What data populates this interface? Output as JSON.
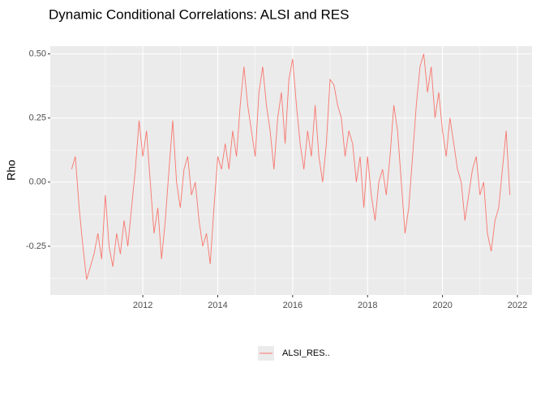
{
  "chart_data": {
    "type": "line",
    "title": "Dynamic Conditional Correlations: ALSI and RES",
    "y_label": "Rho",
    "x": [
      2010.1,
      2010.2,
      2010.3,
      2010.4,
      2010.5,
      2010.6,
      2010.7,
      2010.8,
      2010.9,
      2011.0,
      2011.1,
      2011.2,
      2011.3,
      2011.4,
      2011.5,
      2011.6,
      2011.7,
      2011.8,
      2011.9,
      2012.0,
      2012.1,
      2012.2,
      2012.3,
      2012.4,
      2012.5,
      2012.6,
      2012.7,
      2012.8,
      2012.9,
      2013.0,
      2013.1,
      2013.2,
      2013.3,
      2013.4,
      2013.5,
      2013.6,
      2013.7,
      2013.8,
      2013.9,
      2014.0,
      2014.1,
      2014.2,
      2014.3,
      2014.4,
      2014.5,
      2014.6,
      2014.7,
      2014.8,
      2014.9,
      2015.0,
      2015.1,
      2015.2,
      2015.3,
      2015.4,
      2015.5,
      2015.6,
      2015.7,
      2015.8,
      2015.9,
      2016.0,
      2016.1,
      2016.2,
      2016.3,
      2016.4,
      2016.5,
      2016.6,
      2016.7,
      2016.8,
      2016.9,
      2017.0,
      2017.1,
      2017.2,
      2017.3,
      2017.4,
      2017.5,
      2017.6,
      2017.7,
      2017.8,
      2017.9,
      2018.0,
      2018.1,
      2018.2,
      2018.3,
      2018.4,
      2018.5,
      2018.6,
      2018.7,
      2018.8,
      2018.9,
      2019.0,
      2019.1,
      2019.2,
      2019.3,
      2019.4,
      2019.5,
      2019.6,
      2019.7,
      2019.8,
      2019.9,
      2020.0,
      2020.1,
      2020.2,
      2020.3,
      2020.4,
      2020.5,
      2020.6,
      2020.7,
      2020.8,
      2020.9,
      2021.0,
      2021.1,
      2021.2,
      2021.3,
      2021.4,
      2021.5,
      2021.6,
      2021.7,
      2021.8
    ],
    "series": [
      {
        "name": "ALSI_RES..",
        "color": "#f8766d",
        "values": [
          0.05,
          0.1,
          -0.1,
          -0.25,
          -0.38,
          -0.33,
          -0.28,
          -0.2,
          -0.3,
          -0.05,
          -0.25,
          -0.33,
          -0.2,
          -0.28,
          -0.15,
          -0.25,
          -0.1,
          0.05,
          0.24,
          0.1,
          0.2,
          0.0,
          -0.2,
          -0.1,
          -0.3,
          -0.15,
          0.05,
          0.24,
          0.0,
          -0.1,
          0.05,
          0.1,
          -0.05,
          0.0,
          -0.15,
          -0.25,
          -0.2,
          -0.32,
          -0.1,
          0.1,
          0.05,
          0.15,
          0.05,
          0.2,
          0.1,
          0.3,
          0.45,
          0.3,
          0.2,
          0.1,
          0.35,
          0.45,
          0.3,
          0.2,
          0.05,
          0.25,
          0.35,
          0.15,
          0.4,
          0.48,
          0.3,
          0.15,
          0.05,
          0.2,
          0.1,
          0.3,
          0.1,
          0.0,
          0.15,
          0.4,
          0.38,
          0.3,
          0.25,
          0.1,
          0.2,
          0.15,
          0.0,
          0.1,
          -0.1,
          0.1,
          -0.05,
          -0.15,
          0.0,
          0.05,
          -0.05,
          0.1,
          0.3,
          0.2,
          0.0,
          -0.2,
          -0.1,
          0.1,
          0.3,
          0.45,
          0.5,
          0.35,
          0.45,
          0.25,
          0.35,
          0.2,
          0.1,
          0.25,
          0.15,
          0.05,
          0.0,
          -0.15,
          -0.05,
          0.05,
          0.1,
          -0.05,
          0.0,
          -0.2,
          -0.27,
          -0.15,
          -0.1,
          0.05,
          0.2,
          -0.05
        ]
      }
    ],
    "xlim": [
      2009.53,
      2022.39
    ],
    "xticks": [
      2012,
      2014,
      2016,
      2018,
      2020,
      2022
    ],
    "ylim": [
      -0.44,
      0.53
    ],
    "yticks": [
      {
        "value": 0.5,
        "label": "0.50"
      },
      0.25,
      {
        "value": 0,
        "label": "0.00"
      },
      -0.25
    ],
    "grid": true,
    "legend": "bottom"
  }
}
